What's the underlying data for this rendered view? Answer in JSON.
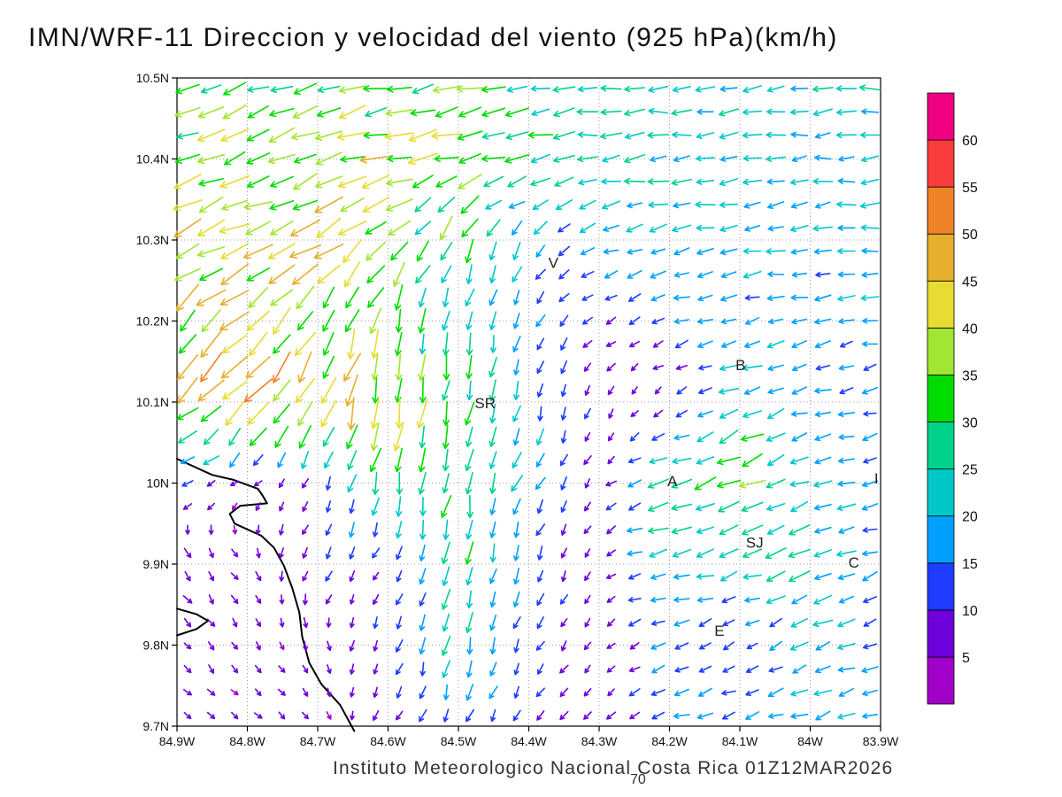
{
  "title": "IMN/WRF-11 Direccion y velocidad del viento (925 hPa)(km/h)",
  "footer": {
    "credit": "Instituto Meteorologico Nacional Costa Rica 01Z12MAR2026",
    "page_number": "70"
  },
  "chart_data": {
    "type": "quiver",
    "title": "IMN/WRF-11 Direccion y velocidad del viento (925 hPa)(km/h)",
    "unit": "km/h",
    "pressure_level": "925 hPa",
    "x_axis": {
      "tick_labels": [
        "84.9W",
        "84.8W",
        "84.7W",
        "84.6W",
        "84.5W",
        "84.4W",
        "84.3W",
        "84.2W",
        "84.1W",
        "84W",
        "83.9W"
      ],
      "range_lon_west": [
        84.9,
        83.9
      ]
    },
    "y_axis": {
      "tick_labels": [
        "10.5N",
        "10.4N",
        "10.3N",
        "10.2N",
        "10.1N",
        "10N",
        "9.9N",
        "9.8N",
        "9.7N"
      ],
      "range_lat": [
        9.7,
        10.5
      ]
    },
    "grid": "dotted",
    "colorbar": {
      "position": "right",
      "levels": [
        5,
        10,
        15,
        20,
        25,
        30,
        35,
        40,
        45,
        50,
        55,
        60
      ],
      "colors": [
        "#A000C8",
        "#6E00DC",
        "#1E3CFF",
        "#00A0FF",
        "#00C8C8",
        "#00D28C",
        "#00DC00",
        "#A0E632",
        "#E6DC32",
        "#E6AF2D",
        "#F08228",
        "#FA3C3C",
        "#F00082"
      ]
    },
    "stations": [
      {
        "label": "V",
        "lon_w": 84.365,
        "lat": 10.272
      },
      {
        "label": "B",
        "lon_w": 84.099,
        "lat": 10.146
      },
      {
        "label": "SR",
        "lon_w": 84.462,
        "lat": 10.099
      },
      {
        "label": "A",
        "lon_w": 84.196,
        "lat": 10.003
      },
      {
        "label": "SJ",
        "lon_w": 84.079,
        "lat": 9.927
      },
      {
        "label": "C",
        "lon_w": 83.938,
        "lat": 9.902
      },
      {
        "label": "E",
        "lon_w": 84.129,
        "lat": 9.818
      },
      {
        "label": "I",
        "lon_w": 83.906,
        "lat": 10.006
      }
    ],
    "coastline": [
      [
        84.9,
        10.03
      ],
      [
        84.85,
        10.01
      ],
      [
        84.82,
        10.004
      ],
      [
        84.785,
        9.993
      ],
      [
        84.778,
        9.984
      ],
      [
        84.772,
        9.975
      ],
      [
        84.81,
        9.972
      ],
      [
        84.825,
        9.962
      ],
      [
        84.818,
        9.95
      ],
      [
        84.78,
        9.935
      ],
      [
        84.762,
        9.92
      ],
      [
        84.748,
        9.898
      ],
      [
        84.736,
        9.87
      ],
      [
        84.726,
        9.84
      ],
      [
        84.722,
        9.81
      ],
      [
        84.712,
        9.778
      ],
      [
        84.695,
        9.752
      ],
      [
        84.668,
        9.726
      ],
      [
        84.655,
        9.705
      ],
      [
        84.648,
        9.694
      ]
    ],
    "peninsula": [
      [
        84.9,
        9.845
      ],
      [
        84.872,
        9.838
      ],
      [
        84.856,
        9.83
      ],
      [
        84.872,
        9.82
      ],
      [
        84.9,
        9.812
      ]
    ],
    "wind_field": {
      "comment": "coarse grid of wind components (km/h), u eastward / v northward, rows north to south",
      "lons_w": [
        84.9,
        84.8,
        84.7,
        84.6,
        84.5,
        84.4,
        84.3,
        84.2,
        84.1,
        84.0,
        83.9
      ],
      "lats": [
        10.5,
        10.4,
        10.3,
        10.2,
        10.1,
        10.0,
        9.9,
        9.8,
        9.7
      ],
      "u_kmh": [
        [
          -26,
          -30,
          -30,
          -32,
          -30,
          -26,
          -24,
          -22,
          -22,
          -22,
          -22
        ],
        [
          -34,
          -36,
          -36,
          -38,
          -36,
          -30,
          -24,
          -22,
          -20,
          -20,
          -20
        ],
        [
          -38,
          -40,
          -36,
          -24,
          -12,
          -10,
          -16,
          -20,
          -20,
          -20,
          -20
        ],
        [
          -30,
          -34,
          -20,
          -8,
          -4,
          -6,
          -8,
          -14,
          -16,
          -16,
          -16
        ],
        [
          -30,
          -32,
          -14,
          -8,
          -6,
          -4,
          -2,
          -4,
          -24,
          -16,
          -14
        ],
        [
          -10,
          -4,
          -5,
          -6,
          -5,
          -10,
          -4,
          -28,
          -30,
          -20,
          -15
        ],
        [
          6,
          4,
          -6,
          -3,
          -4,
          -5,
          -3,
          -22,
          -20,
          -26,
          -15
        ],
        [
          4,
          3,
          2,
          -5,
          -4,
          -6,
          -3,
          -16,
          -8,
          -20,
          -14
        ],
        [
          5,
          5,
          4,
          -4,
          -6,
          -6,
          -6,
          -14,
          -16,
          -18,
          -15
        ]
      ],
      "v_kmh": [
        [
          -8,
          -10,
          -6,
          -6,
          -4,
          -3,
          -2,
          -2,
          -2,
          -2,
          -2
        ],
        [
          -14,
          -14,
          -12,
          -10,
          -10,
          -6,
          -3,
          -2,
          -2,
          -2,
          -2
        ],
        [
          -20,
          -18,
          -20,
          -22,
          -28,
          -15,
          -6,
          -4,
          -3,
          -3,
          -3
        ],
        [
          -28,
          -30,
          -32,
          -30,
          -26,
          -12,
          -6,
          -4,
          -4,
          -3,
          -3
        ],
        [
          -25,
          -38,
          -42,
          -40,
          -30,
          -20,
          -6,
          -4,
          -10,
          -4,
          -4
        ],
        [
          -4,
          -3,
          -8,
          -34,
          -28,
          -18,
          -5,
          -6,
          -14,
          -6,
          -4
        ],
        [
          -8,
          -6,
          -10,
          -5,
          -28,
          -14,
          -4,
          -5,
          -6,
          -10,
          -5
        ],
        [
          -5,
          -5,
          -6,
          -10,
          -24,
          -10,
          -4,
          -5,
          -6,
          -8,
          -5
        ],
        [
          -3,
          -3,
          -4,
          -8,
          -14,
          -8,
          -5,
          -4,
          -5,
          -6,
          -5
        ]
      ]
    },
    "arrow_grid": {
      "nx": 30,
      "ny": 28
    }
  }
}
